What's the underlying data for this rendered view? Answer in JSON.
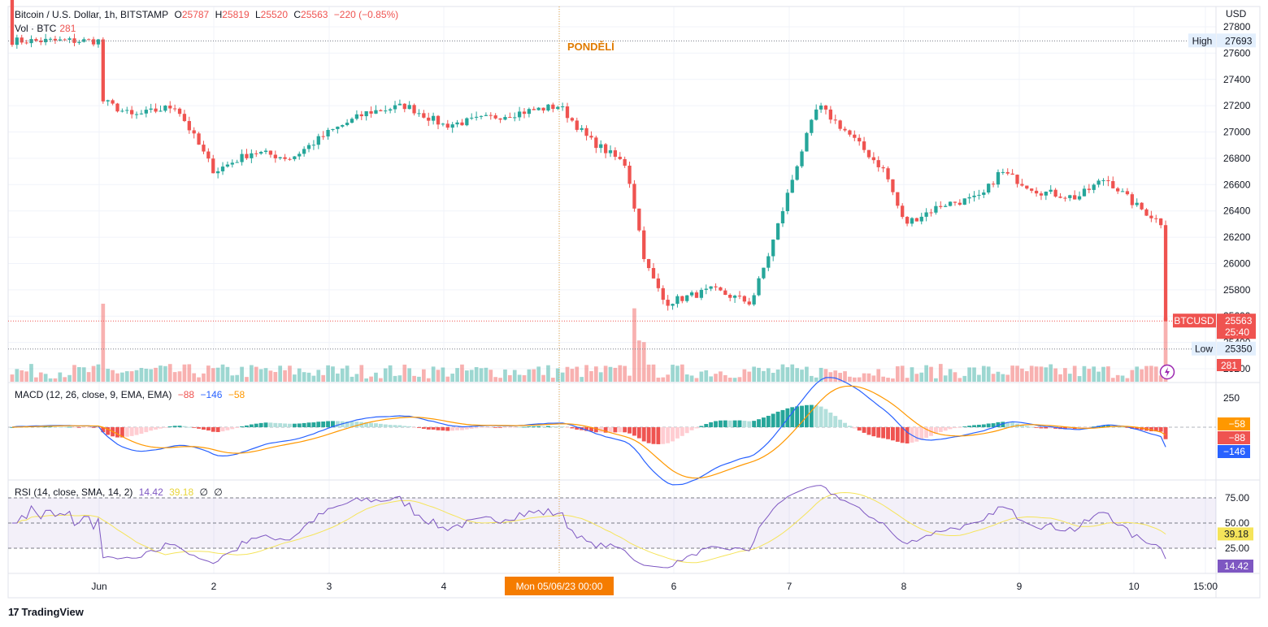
{
  "header": {
    "symbol_line": "Bitcoin / U.S. Dollar, 1h, BITSTAMP",
    "o_label": "O",
    "o_value": "25787",
    "h_label": "H",
    "h_value": "25819",
    "l_label": "L",
    "l_value": "25520",
    "c_label": "C",
    "c_value": "25563",
    "change": "−220 (−0.85%)",
    "vol_label": "Vol · BTC",
    "vol_value": "281"
  },
  "colors": {
    "up": "#26a69a",
    "down": "#ef5350",
    "macd": "#2962ff",
    "signal": "#ff9800",
    "rsi": "#7e57c2",
    "rsi_ma": "#f5e45a"
  },
  "price_axis": {
    "currency": "USD",
    "ticks": [
      "27800",
      "27600",
      "27400",
      "27200",
      "27000",
      "26800",
      "26600",
      "26400",
      "26200",
      "26000",
      "25800",
      "25600",
      "25400",
      "25200"
    ],
    "high_label": "High",
    "high_value": "27693",
    "low_label": "Low",
    "low_value": "25350",
    "last_symbol": "BTCUSD",
    "last_value": "25563",
    "countdown": "25:40",
    "vol_badge": "281"
  },
  "day_marker": "PONDĚLÍ",
  "cursor_label": "Mon 05/06/23   00:00",
  "time_axis": [
    "Jun",
    "2",
    "3",
    "4",
    "6",
    "7",
    "8",
    "9",
    "10",
    "15:00"
  ],
  "macd": {
    "title": "MACD (12, 26, close, 9, EMA, EMA)",
    "hist": "−88",
    "macd": "−146",
    "signal": "−58",
    "axis_ticks": [
      "250"
    ],
    "badge_signal": "−58",
    "badge_hist": "−88",
    "badge_macd": "−146"
  },
  "rsi": {
    "title": "RSI (14, close, SMA, 14, 2)",
    "value": "14.42",
    "ma": "39.18",
    "na1": "∅",
    "na2": "∅",
    "axis_ticks": [
      "75.00",
      "50.00",
      "25.00"
    ],
    "badge_ma": "39.18",
    "badge_rsi": "14.42"
  },
  "brand": "TradingView",
  "chart_data": {
    "type": "candlestick",
    "symbol": "BTCUSD",
    "interval": "1h",
    "ylim": [
      25200,
      27800
    ],
    "anchors": [
      {
        "date": "2023-06-01 00:00",
        "price": 27693
      },
      {
        "date": "2023-06-01 00:00",
        "price": 27250
      },
      {
        "date": "2023-06-01 07:00",
        "price": 27120
      },
      {
        "date": "2023-06-01 16:00",
        "price": 27200
      },
      {
        "date": "2023-06-02 00:00",
        "price": 26700
      },
      {
        "date": "2023-06-02 08:00",
        "price": 26850
      },
      {
        "date": "2023-06-02 16:00",
        "price": 26800
      },
      {
        "date": "2023-06-03 00:00",
        "price": 27000
      },
      {
        "date": "2023-06-03 08:00",
        "price": 27150
      },
      {
        "date": "2023-06-03 16:00",
        "price": 27200
      },
      {
        "date": "2023-06-04 00:00",
        "price": 27050
      },
      {
        "date": "2023-06-04 16:00",
        "price": 27150
      },
      {
        "date": "2023-06-05 00:00",
        "price": 27200
      },
      {
        "date": "2023-06-05 06:00",
        "price": 26950
      },
      {
        "date": "2023-06-05 14:00",
        "price": 26750
      },
      {
        "date": "2023-06-05 18:00",
        "price": 26000
      },
      {
        "date": "2023-06-05 22:00",
        "price": 25700
      },
      {
        "date": "2023-06-06 08:00",
        "price": 25800
      },
      {
        "date": "2023-06-06 16:00",
        "price": 25700
      },
      {
        "date": "2023-06-06 20:00",
        "price": 26100
      },
      {
        "date": "2023-06-07 02:00",
        "price": 26800
      },
      {
        "date": "2023-06-07 06:00",
        "price": 27200
      },
      {
        "date": "2023-06-07 12:00",
        "price": 27000
      },
      {
        "date": "2023-06-07 20:00",
        "price": 26700
      },
      {
        "date": "2023-06-08 00:00",
        "price": 26300
      },
      {
        "date": "2023-06-08 08:00",
        "price": 26450
      },
      {
        "date": "2023-06-08 16:00",
        "price": 26500
      },
      {
        "date": "2023-06-08 20:00",
        "price": 26700
      },
      {
        "date": "2023-06-09 04:00",
        "price": 26550
      },
      {
        "date": "2023-06-09 12:00",
        "price": 26500
      },
      {
        "date": "2023-06-09 18:00",
        "price": 26650
      },
      {
        "date": "2023-06-10 00:00",
        "price": 26450
      },
      {
        "date": "2023-06-10 06:00",
        "price": 26300
      },
      {
        "date": "2023-06-10 08:00",
        "price": 25800
      },
      {
        "date": "2023-06-10 10:00",
        "price": 25563
      }
    ],
    "high": 27693,
    "low": 25350,
    "last": 25563,
    "volume_last": 281,
    "macd_last": {
      "macd": -146,
      "signal": -58,
      "histogram": -88
    },
    "rsi_last": {
      "rsi": 14.42,
      "ma": 39.18
    },
    "rsi_levels": [
      25,
      50,
      75
    ]
  }
}
